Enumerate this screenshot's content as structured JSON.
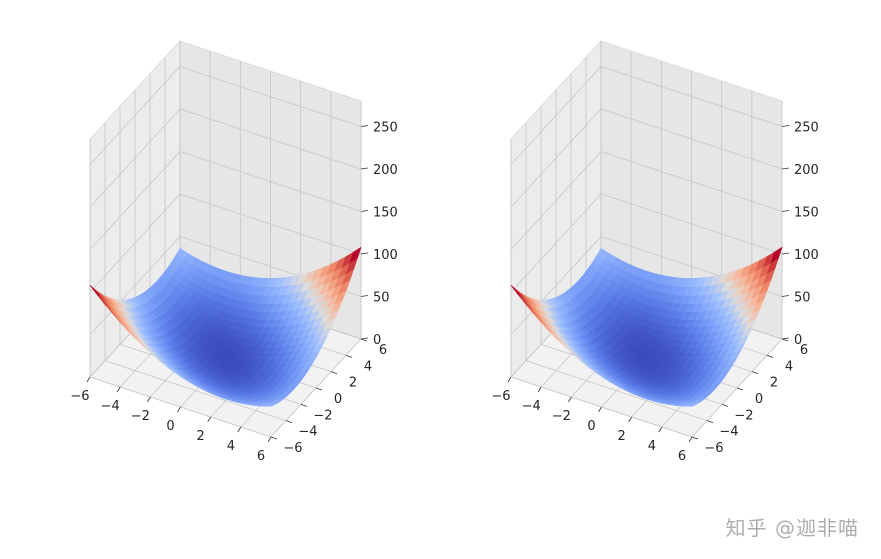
{
  "watermark": "知乎 @迦非喵",
  "chart_data": [
    {
      "type": "surface",
      "z_function": "x^2 + y^2 + x*y",
      "colormap": "coolwarm",
      "x": [
        -6,
        6
      ],
      "y": [
        -6,
        6
      ],
      "grid_step": 0.5,
      "xlim": [
        -6,
        6
      ],
      "ylim": [
        -6,
        6
      ],
      "zlim": [
        0,
        280
      ],
      "x_ticks": [
        "−6",
        "−4",
        "−2",
        "0",
        "2",
        "4",
        "6"
      ],
      "y_ticks": [
        "−6",
        "−4",
        "−2",
        "0",
        "2",
        "4",
        "6"
      ],
      "z_ticks": [
        "0",
        "50",
        "100",
        "150",
        "200",
        "250"
      ],
      "grid": true
    },
    {
      "type": "surface",
      "z_function": "x^2 + y^2 + x*y",
      "colormap": "coolwarm",
      "x": [
        -6,
        6
      ],
      "y": [
        -6,
        6
      ],
      "grid_step": 0.5,
      "xlim": [
        -6,
        6
      ],
      "ylim": [
        -6,
        6
      ],
      "zlim": [
        0,
        280
      ],
      "x_ticks": [
        "−6",
        "−4",
        "−2",
        "0",
        "2",
        "4",
        "6"
      ],
      "y_ticks": [
        "−6",
        "−4",
        "−2",
        "0",
        "2",
        "4",
        "6"
      ],
      "z_ticks": [
        "0",
        "50",
        "100",
        "150",
        "200",
        "250"
      ],
      "grid": true
    }
  ]
}
